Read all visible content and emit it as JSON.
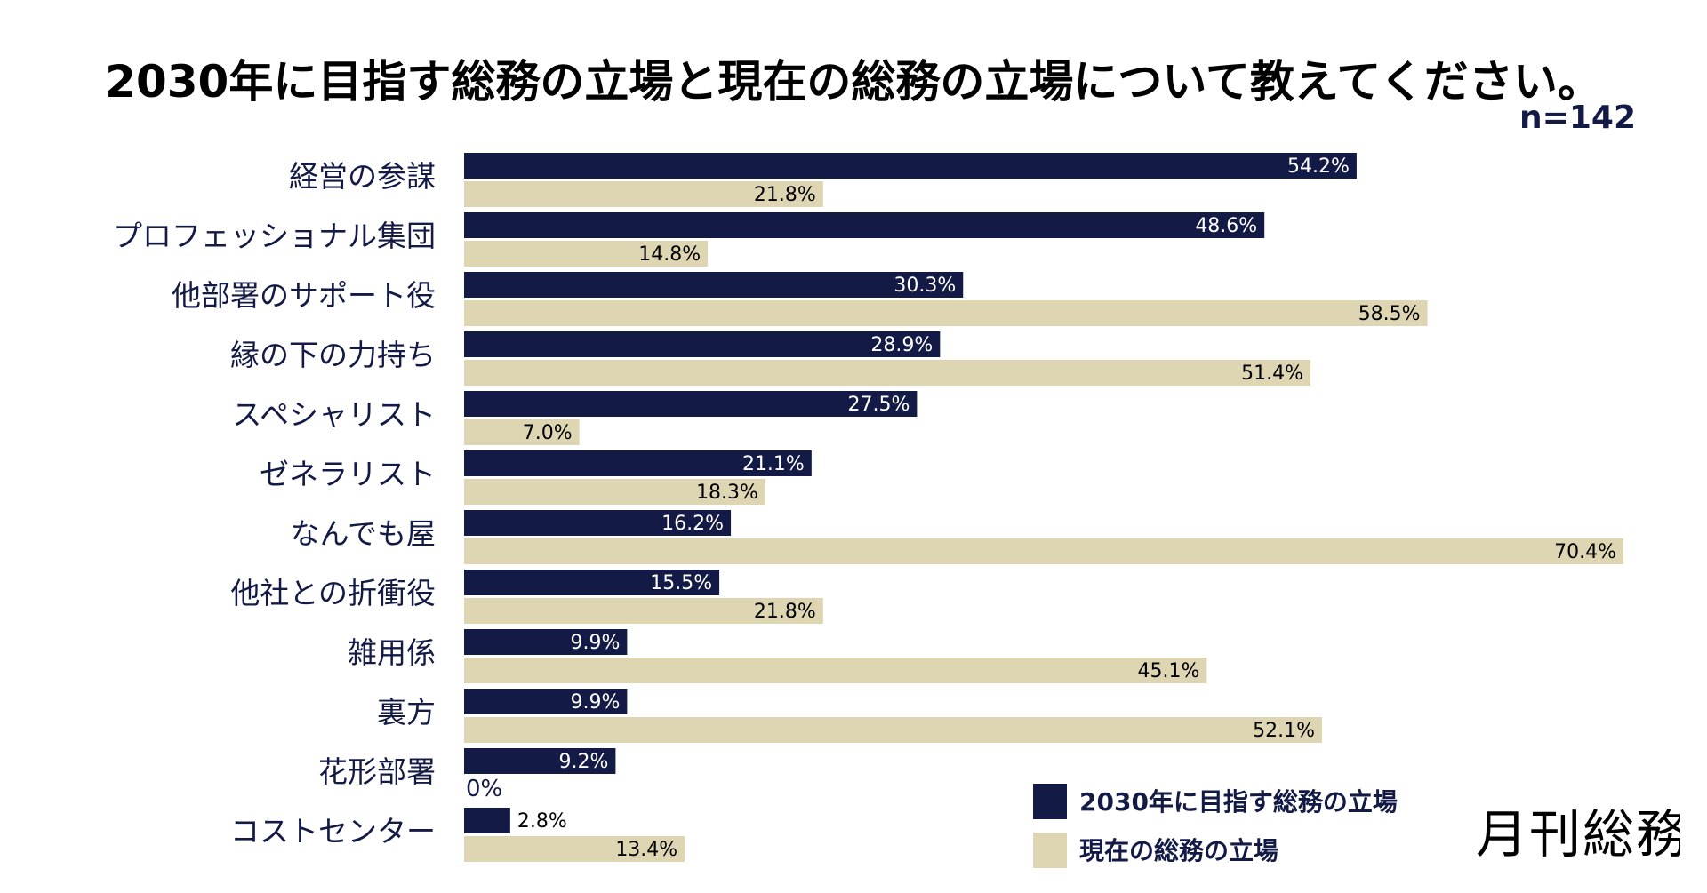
{
  "header": {
    "title": "2030年に目指す総務の立場と現在の総務の立場について教えてください。",
    "n": "n=142"
  },
  "brand": "月刊総務",
  "colors": {
    "target": "#131a45",
    "current": "#ded6b3",
    "label_dark": "#000000",
    "label_light": "#ffffff",
    "category_text": "#131a45"
  },
  "chart_data": {
    "type": "bar",
    "orientation": "horizontal",
    "title": "2030年に目指す総務の立場と現在の総務の立場について教えてください。",
    "xlim": [
      0,
      70.4
    ],
    "categories": [
      "経営の参謀",
      "プロフェッショナル集団",
      "他部署のサポート役",
      "縁の下の力持ち",
      "スペシャリスト",
      "ゼネラリスト",
      "なんでも屋",
      "他社との折衝役",
      "雑用係",
      "裏方",
      "花形部署",
      "コストセンター"
    ],
    "series": [
      {
        "name": "2030年に目指す総務の立場",
        "values": [
          54.2,
          48.6,
          30.3,
          28.9,
          27.5,
          21.1,
          16.2,
          15.5,
          9.9,
          9.9,
          9.2,
          2.8
        ],
        "labels": [
          "54.2%",
          "48.6%",
          "30.3%",
          "28.9%",
          "27.5%",
          "21.1%",
          "16.2%",
          "15.5%",
          "9.9%",
          "9.9%",
          "9.2%",
          "2.8%"
        ]
      },
      {
        "name": "現在の総務の立場",
        "values": [
          21.8,
          14.8,
          58.5,
          51.4,
          7.0,
          18.3,
          70.4,
          21.8,
          45.1,
          52.1,
          0,
          13.4
        ],
        "labels": [
          "21.8%",
          "14.8%",
          "58.5%",
          "51.4%",
          "7.0%",
          "18.3%",
          "70.4%",
          "21.8%",
          "45.1%",
          "52.1%",
          "0%",
          "13.4%"
        ]
      }
    ],
    "legend": {
      "position": "bottom-right",
      "entries": [
        "2030年に目指す総務の立場",
        "現在の総務の立場"
      ]
    }
  }
}
